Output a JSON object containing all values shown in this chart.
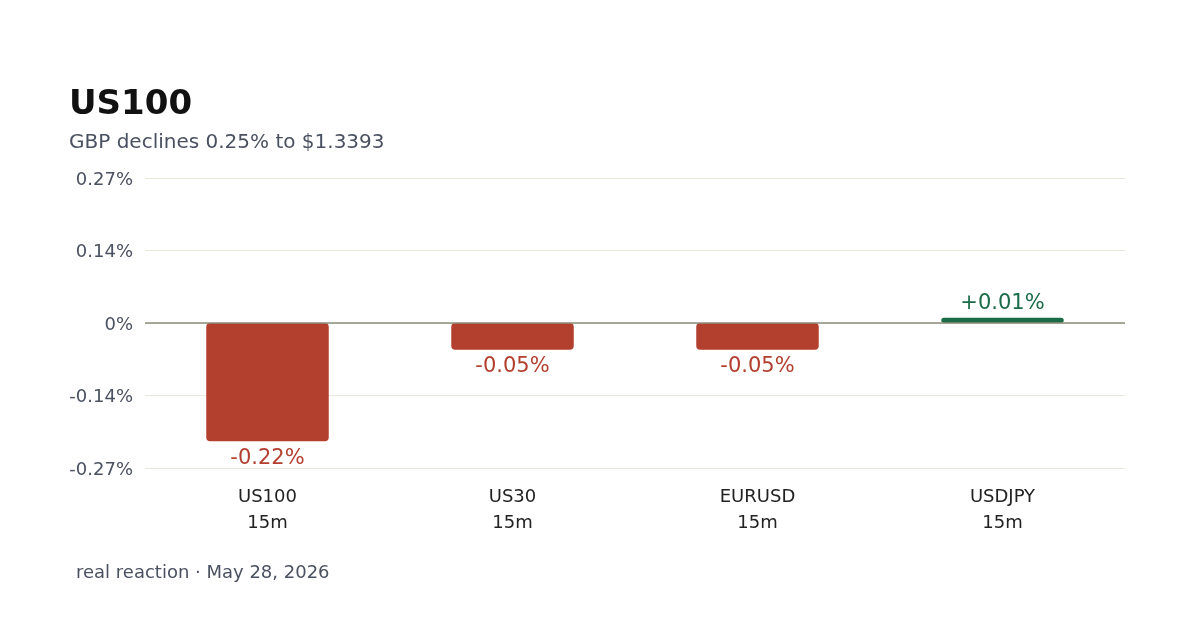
{
  "chart_data": {
    "type": "bar",
    "title": "US100",
    "subtitle": "GBP declines 0.25% to $1.3393",
    "categories": [
      "US100\n15m",
      "US30\n15m",
      "EURUSD\n15m",
      "USDJPY\n15m"
    ],
    "values": [
      -0.22,
      -0.05,
      -0.05,
      0.01
    ],
    "colors": [
      "#b33f2e",
      "#b33f2e",
      "#b33f2e",
      "#1a6b47"
    ],
    "value_labels": [
      "-0.22%",
      "-0.05%",
      "-0.05%",
      "+0.01%"
    ],
    "ylim": [
      -0.27,
      0.27
    ],
    "yticks": [
      {
        "value": -0.27,
        "label": "-0.27%"
      },
      {
        "value": -0.135,
        "label": "-0.14%"
      },
      {
        "value": 0,
        "label": "0%"
      },
      {
        "value": 0.135,
        "label": "0.14%"
      },
      {
        "value": 0.27,
        "label": "0.27%"
      }
    ],
    "ref_lines": [
      {
        "axis": "y",
        "value": 0,
        "color": "#8c8c7c"
      }
    ],
    "grid": "y",
    "annotations": [
      "real reaction · May 28, 2026"
    ]
  }
}
